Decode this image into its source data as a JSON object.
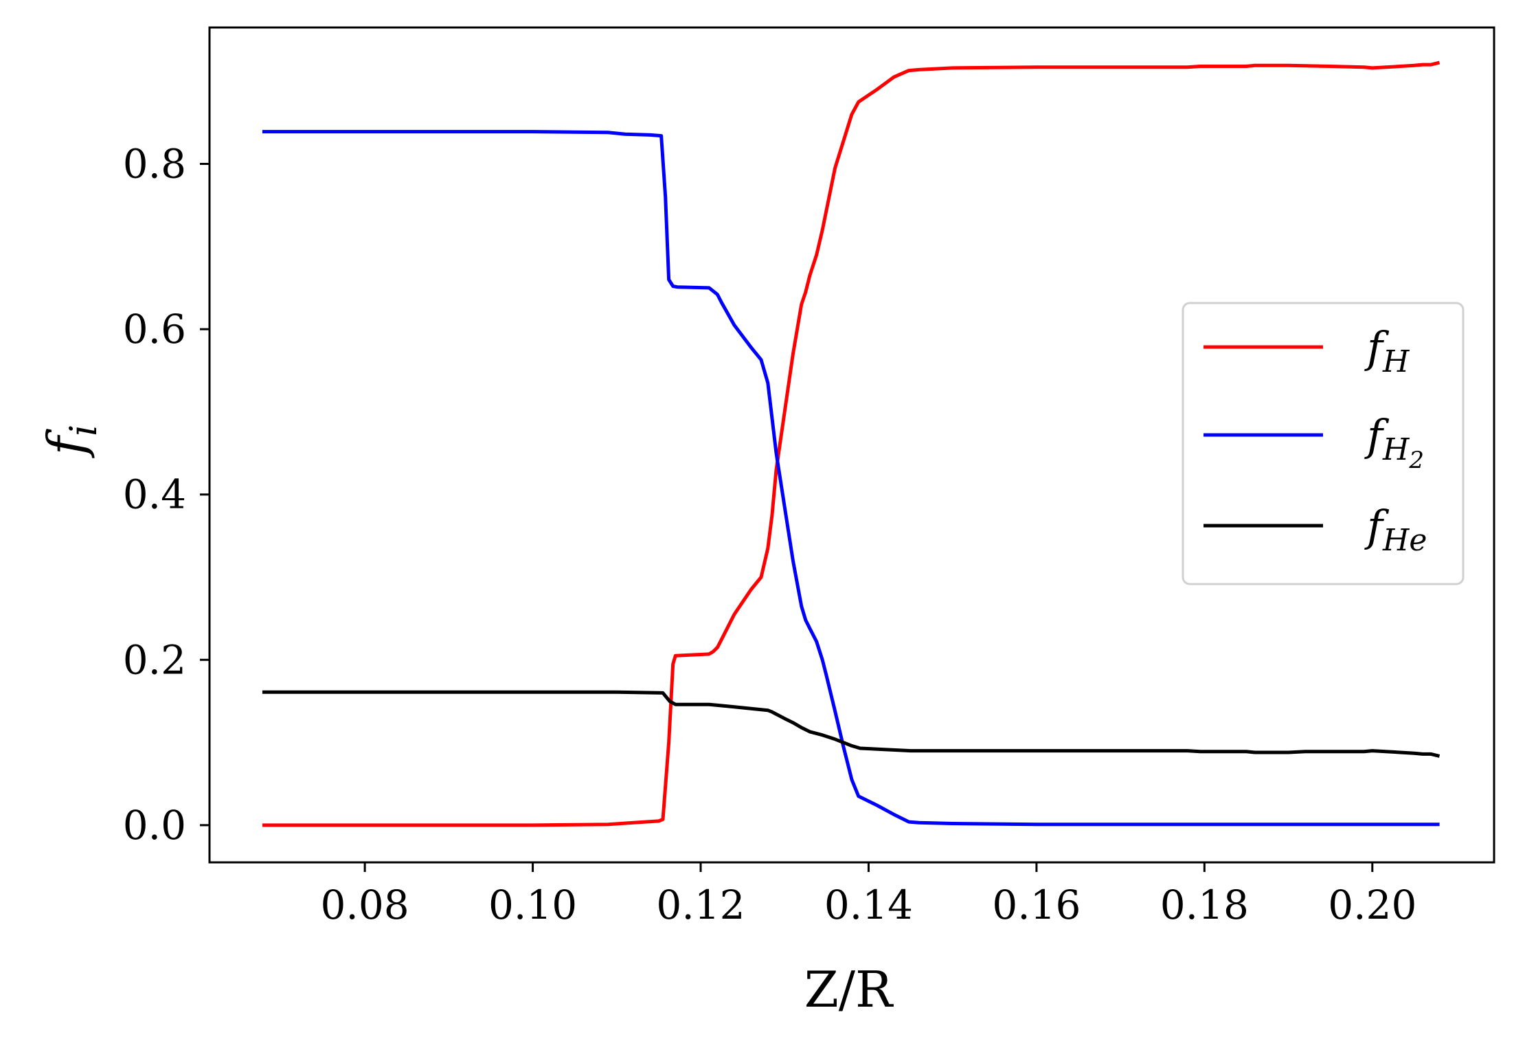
{
  "chart_data": {
    "type": "line",
    "title": "",
    "xlabel": "Z/R",
    "ylabel": {
      "main": "f",
      "sub": "i"
    },
    "xlim": [
      0.0615,
      0.2145
    ],
    "ylim": [
      -0.045,
      0.965
    ],
    "xticks": [
      0.08,
      0.1,
      0.12,
      0.14,
      0.16,
      0.18,
      0.2
    ],
    "xtick_labels": [
      "0.08",
      "0.10",
      "0.12",
      "0.14",
      "0.16",
      "0.18",
      "0.20"
    ],
    "yticks": [
      0.0,
      0.2,
      0.4,
      0.6,
      0.8
    ],
    "ytick_labels": [
      "0.0",
      "0.2",
      "0.4",
      "0.6",
      "0.8"
    ],
    "grid": false,
    "legend": "center-right",
    "series": [
      {
        "name": "f_H",
        "label_main": "f",
        "label_sub": "H",
        "color": "#ff0000",
        "x": [
          0.068,
          0.1,
          0.109,
          0.112,
          0.115,
          0.1155,
          0.1162,
          0.1167,
          0.117,
          0.121,
          0.1215,
          0.122,
          0.1225,
          0.124,
          0.126,
          0.1272,
          0.128,
          0.1285,
          0.129,
          0.13,
          0.131,
          0.132,
          0.1325,
          0.133,
          0.1338,
          0.1345,
          0.135,
          0.136,
          0.138,
          0.1388,
          0.141,
          0.143,
          0.1448,
          0.146,
          0.15,
          0.16,
          0.17,
          0.178,
          0.1795,
          0.18,
          0.185,
          0.186,
          0.19,
          0.195,
          0.199,
          0.2,
          0.205,
          0.206,
          0.207,
          0.2078
        ],
        "y": [
          0.0,
          0.0,
          0.001,
          0.003,
          0.005,
          0.007,
          0.1,
          0.195,
          0.205,
          0.207,
          0.21,
          0.215,
          0.225,
          0.255,
          0.285,
          0.3,
          0.335,
          0.375,
          0.43,
          0.5,
          0.57,
          0.63,
          0.645,
          0.665,
          0.69,
          0.72,
          0.745,
          0.795,
          0.86,
          0.875,
          0.89,
          0.905,
          0.913,
          0.914,
          0.916,
          0.917,
          0.917,
          0.917,
          0.918,
          0.918,
          0.918,
          0.919,
          0.919,
          0.918,
          0.917,
          0.916,
          0.919,
          0.92,
          0.92,
          0.922
        ]
      },
      {
        "name": "f_H2",
        "label_main": "f",
        "label_sub": "H",
        "label_subsub": "2",
        "color": "#0000ff",
        "x": [
          0.068,
          0.1,
          0.109,
          0.111,
          0.114,
          0.1153,
          0.1158,
          0.1162,
          0.1167,
          0.1172,
          0.121,
          0.1215,
          0.122,
          0.1225,
          0.124,
          0.126,
          0.1272,
          0.128,
          0.129,
          0.13,
          0.131,
          0.132,
          0.1325,
          0.133,
          0.1338,
          0.1345,
          0.135,
          0.136,
          0.137,
          0.138,
          0.1388,
          0.141,
          0.143,
          0.1448,
          0.146,
          0.15,
          0.16,
          0.17,
          0.18,
          0.19,
          0.2,
          0.2078
        ],
        "y": [
          0.839,
          0.839,
          0.838,
          0.836,
          0.835,
          0.834,
          0.76,
          0.66,
          0.652,
          0.651,
          0.65,
          0.646,
          0.642,
          0.632,
          0.605,
          0.578,
          0.563,
          0.535,
          0.45,
          0.385,
          0.32,
          0.265,
          0.248,
          0.238,
          0.222,
          0.2,
          0.18,
          0.138,
          0.095,
          0.055,
          0.035,
          0.024,
          0.013,
          0.004,
          0.003,
          0.002,
          0.001,
          0.001,
          0.001,
          0.001,
          0.001,
          0.001
        ]
      },
      {
        "name": "f_He",
        "label_main": "f",
        "label_sub": "He",
        "color": "#000000",
        "x": [
          0.068,
          0.1,
          0.11,
          0.1155,
          0.1163,
          0.117,
          0.121,
          0.122,
          0.124,
          0.126,
          0.127,
          0.128,
          0.1285,
          0.13,
          0.131,
          0.132,
          0.133,
          0.1345,
          0.136,
          0.137,
          0.138,
          0.139,
          0.145,
          0.15,
          0.16,
          0.17,
          0.178,
          0.1795,
          0.185,
          0.186,
          0.19,
          0.192,
          0.199,
          0.2,
          0.205,
          0.206,
          0.207,
          0.2078
        ],
        "y": [
          0.161,
          0.161,
          0.161,
          0.16,
          0.15,
          0.146,
          0.146,
          0.145,
          0.143,
          0.141,
          0.14,
          0.139,
          0.137,
          0.129,
          0.124,
          0.118,
          0.113,
          0.109,
          0.104,
          0.1,
          0.096,
          0.093,
          0.09,
          0.09,
          0.09,
          0.09,
          0.09,
          0.089,
          0.089,
          0.088,
          0.088,
          0.089,
          0.089,
          0.09,
          0.087,
          0.086,
          0.086,
          0.084
        ]
      }
    ]
  }
}
